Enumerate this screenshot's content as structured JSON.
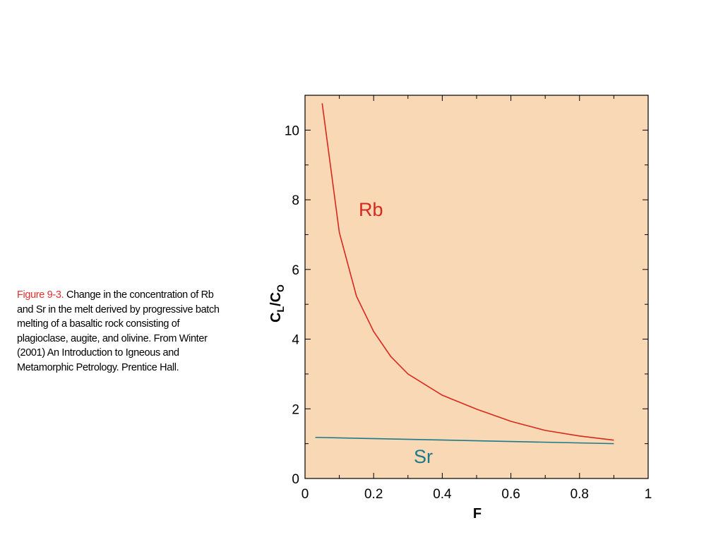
{
  "caption": {
    "label": "Figure 9-3.",
    "text": "Change in the concentration of Rb and Sr in the melt derived by progressive batch melting of a basaltic rock consisting of plagioclase, augite, and olivine. From Winter (2001) An Introduction to Igneous and Metamorphic Petrology. Prentice Hall."
  },
  "chart_data": {
    "type": "line",
    "x_label": "F",
    "y_label_parts": [
      {
        "text": "C",
        "sub": false
      },
      {
        "text": "L",
        "sub": true
      },
      {
        "text": "/C",
        "sub": false
      },
      {
        "text": "O",
        "sub": true
      }
    ],
    "background": "#f9d8b5",
    "xlim": [
      0,
      1
    ],
    "ylim": [
      0,
      11
    ],
    "xticks": [
      0,
      0.2,
      0.4,
      0.6,
      0.8,
      1
    ],
    "xticks_minor": [
      0.1,
      0.3,
      0.5,
      0.7,
      0.9
    ],
    "yticks": [
      0,
      2,
      4,
      6,
      8,
      10
    ],
    "yticks_minor": [
      1,
      3,
      5,
      7,
      9
    ],
    "series": [
      {
        "name": "Rb",
        "color": "#d8281e",
        "x": [
          0.05,
          0.1,
          0.15,
          0.2,
          0.25,
          0.3,
          0.4,
          0.5,
          0.6,
          0.7,
          0.8,
          0.9
        ],
        "values": [
          10.77,
          7.06,
          5.23,
          4.22,
          3.5,
          3.0,
          2.39,
          1.99,
          1.64,
          1.38,
          1.22,
          1.1
        ]
      },
      {
        "name": "Sr",
        "color": "#1b7a8a",
        "x": [
          0.03,
          0.9
        ],
        "values": [
          1.18,
          1.0
        ]
      }
    ]
  }
}
